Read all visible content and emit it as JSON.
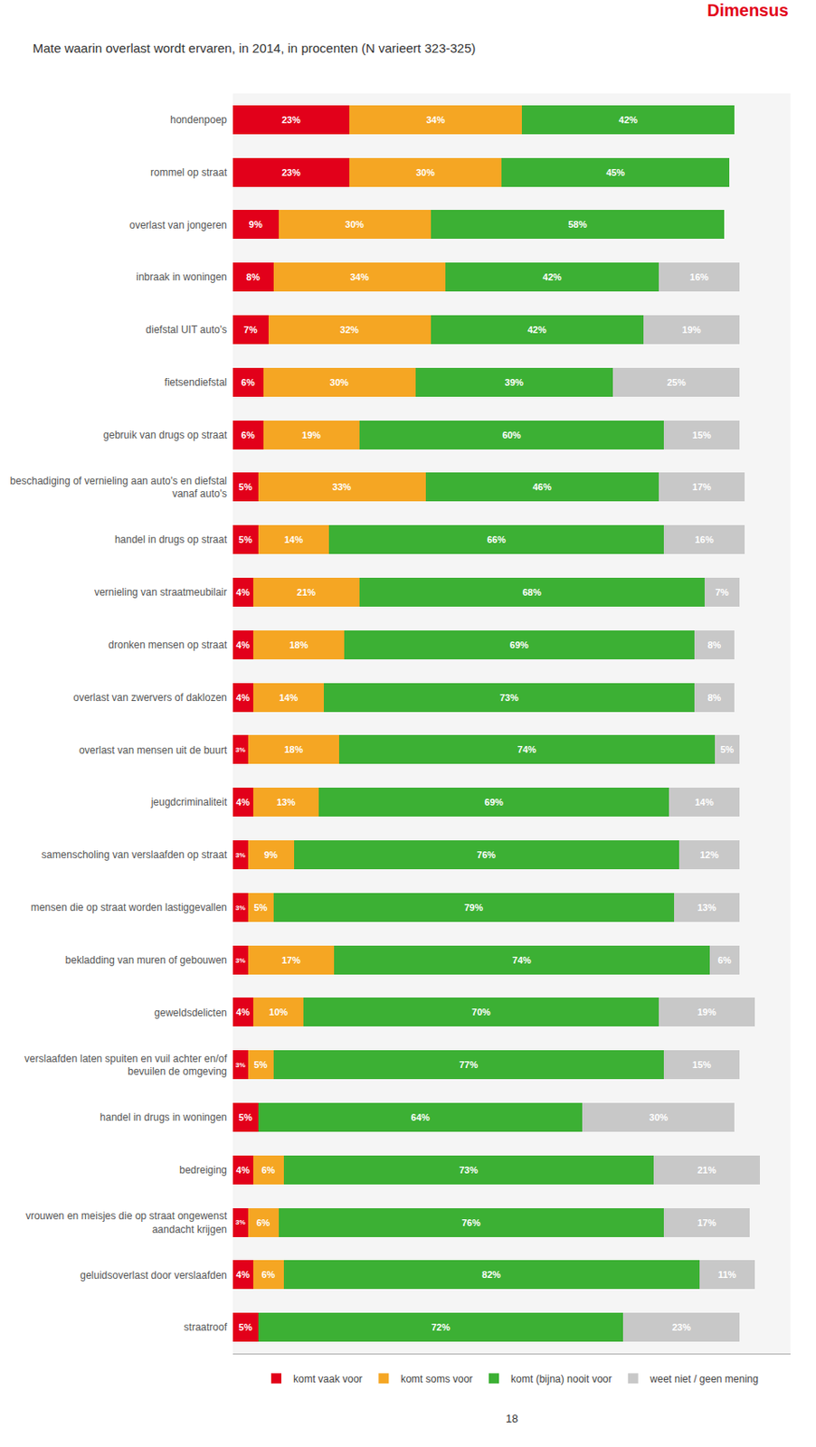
{
  "chart_data": {
    "type": "bar",
    "orientation": "horizontal",
    "stacked": true,
    "data_labels": true,
    "grid": false,
    "legend": "bottom",
    "tick_labels": "y",
    "title": "Mate waarin overlast wordt ervaren, in 2014, in procenten (N varieert 323-325)",
    "annotations": [
      "Dimensus",
      "18"
    ],
    "categories": [
      "hondenpoep",
      "rommel op straat",
      "overlast van jongeren",
      "inbraak in woningen",
      "diefstal UIT auto's",
      "fietsendiefstal",
      "gebruik van drugs op straat",
      "beschadiging of vernieling aan auto's en diefstal\nvanaf auto's",
      "handel in drugs op straat",
      "vernieling van straatmeubilair",
      "dronken mensen op straat",
      "overlast van zwervers of daklozen",
      "overlast van mensen uit de buurt",
      "jeugdcriminaliteit",
      "samenscholing van verslaafden op straat",
      "mensen die op straat worden lastiggevallen",
      "bekladding van muren of gebouwen",
      "geweldsdelicten",
      "verslaafden laten spuiten en vuil achter en/of\nbevuilen de omgeving",
      "handel in drugs in woningen",
      "bedreiging",
      "vrouwen en meisjes die op straat ongewenst\naandacht krijgen",
      "geluidsoverlast door verslaafden",
      "straatroof"
    ],
    "xlim": [
      0,
      110
    ],
    "series": [
      {
        "name": "komt vaak voor",
        "color": "#e2001a",
        "values": [
          23,
          23,
          9,
          8,
          7,
          6,
          6,
          5,
          5,
          4,
          4,
          4,
          3,
          4,
          3,
          3,
          3,
          4,
          3,
          5,
          4,
          3,
          4,
          5
        ],
        "value_labels": [
          "23%",
          "23%",
          "9%",
          "8%",
          "7%",
          "6%",
          "6%",
          "5%",
          "5%",
          "4%",
          "4%",
          "4%",
          "3%",
          "4%",
          "3%",
          "3%",
          "3%",
          "4%",
          "3%",
          "5%",
          "4%",
          "3%",
          "4%",
          "5%"
        ]
      },
      {
        "name": "komt soms voor",
        "color": "#f5a623",
        "values": [
          34,
          30,
          30,
          34,
          32,
          30,
          19,
          33,
          14,
          21,
          18,
          14,
          18,
          13,
          9,
          5,
          17,
          10,
          5,
          0,
          6,
          6,
          6,
          0
        ],
        "value_labels": [
          "34%",
          "30%",
          "30%",
          "34%",
          "32%",
          "30%",
          "19%",
          "33%",
          "14%",
          "21%",
          "18%",
          "14%",
          "18%",
          "13%",
          "9%",
          "5%",
          "17%",
          "10%",
          "5%",
          null,
          "6%",
          "6%",
          "6%",
          null
        ]
      },
      {
        "name": "komt (bijna) nooit voor",
        "color": "#3cb034",
        "values": [
          42,
          45,
          58,
          42,
          42,
          39,
          60,
          46,
          66,
          68,
          69,
          73,
          74,
          69,
          76,
          79,
          74,
          70,
          77,
          64,
          73,
          76,
          82,
          72
        ],
        "value_labels": [
          "42%",
          "45%",
          "58%",
          "42%",
          "42%",
          "39%",
          "60%",
          "46%",
          "66%",
          "68%",
          "69%",
          "73%",
          "74%",
          "69%",
          "76%",
          "79%",
          "74%",
          "70%",
          "77%",
          "64%",
          "73%",
          "76%",
          "82%",
          "72%"
        ]
      },
      {
        "name": "weet niet / geen mening",
        "color": "#c8c8c8",
        "values": [
          0,
          0,
          0,
          16,
          19,
          25,
          15,
          17,
          16,
          7,
          8,
          8,
          5,
          14,
          12,
          13,
          6,
          19,
          15,
          30,
          21,
          17,
          11,
          23
        ],
        "value_labels": [
          null,
          null,
          null,
          "16%",
          "19%",
          "25%",
          "15%",
          "17%",
          "16%",
          "7%",
          "8%",
          "8%",
          "5%",
          "14%",
          "12%",
          "13%",
          "6%",
          "19%",
          "15%",
          "30%",
          "21%",
          "17%",
          "11%",
          "23%"
        ]
      }
    ]
  }
}
